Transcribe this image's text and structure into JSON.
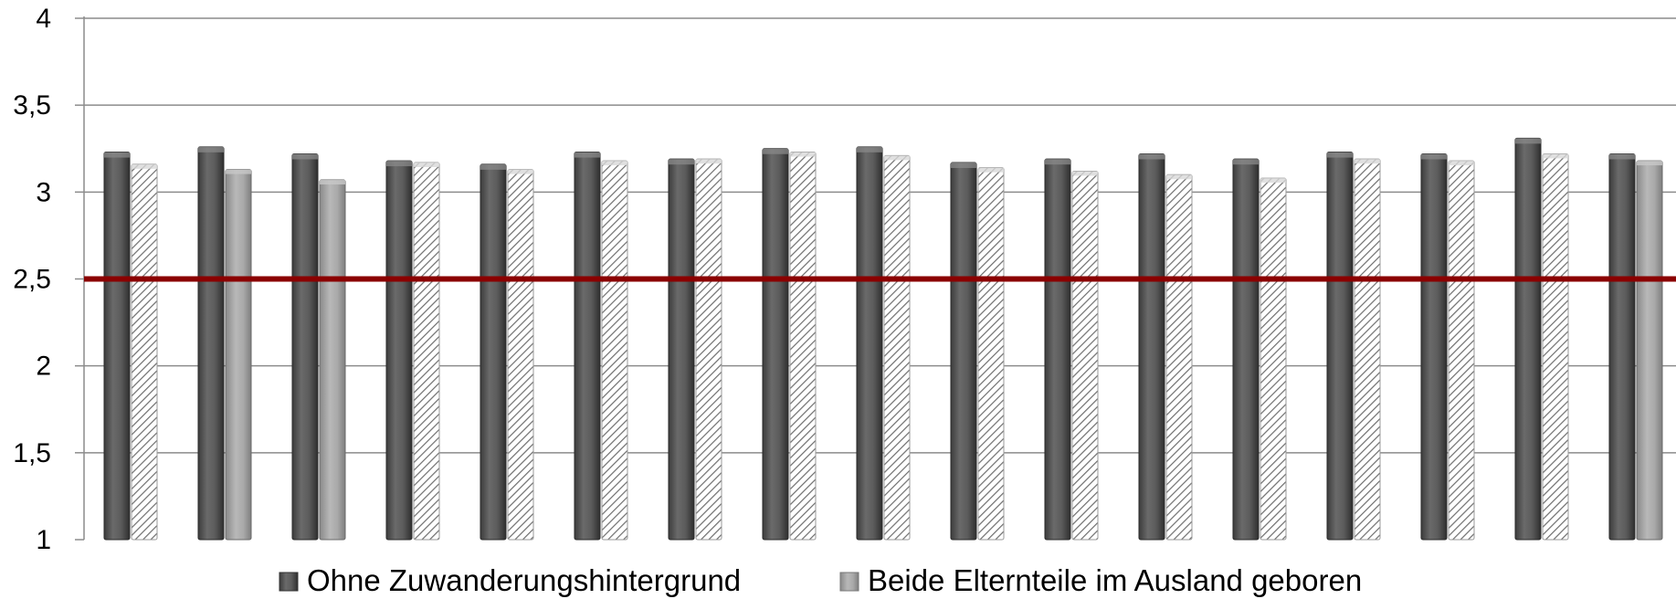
{
  "chart_data": {
    "type": "bar",
    "categories": [
      "",
      "",
      "",
      "",
      "",
      "",
      "",
      "",
      "",
      "",
      "",
      "",
      "",
      "",
      "",
      "",
      ""
    ],
    "series": [
      {
        "name": "Ohne Zuwanderungshintergrund",
        "values": [
          3.23,
          3.26,
          3.22,
          3.18,
          3.16,
          3.23,
          3.19,
          3.25,
          3.26,
          3.17,
          3.19,
          3.22,
          3.19,
          3.23,
          3.22,
          3.31,
          3.22
        ],
        "color": "#555555"
      },
      {
        "name": "Beide Elternteile im Ausland geboren",
        "values": [
          3.16,
          3.13,
          3.07,
          3.17,
          3.13,
          3.18,
          3.19,
          3.23,
          3.21,
          3.14,
          3.12,
          3.1,
          3.08,
          3.19,
          3.18,
          3.22,
          3.18
        ],
        "color": "#aaaaaa",
        "solid_fill_indices": [
          1,
          2,
          16
        ]
      }
    ],
    "reference_line": {
      "value": 2.5,
      "color": "#8b0000"
    },
    "ylim": [
      1,
      4
    ],
    "yticks": [
      "1",
      "1,5",
      "2",
      "2,5",
      "3",
      "3,5",
      "4"
    ],
    "ytick_values": [
      1,
      1.5,
      2,
      2.5,
      3,
      3.5,
      4
    ],
    "grid": true,
    "legend_position": "bottom",
    "title": "",
    "xlabel": "",
    "ylabel": ""
  }
}
